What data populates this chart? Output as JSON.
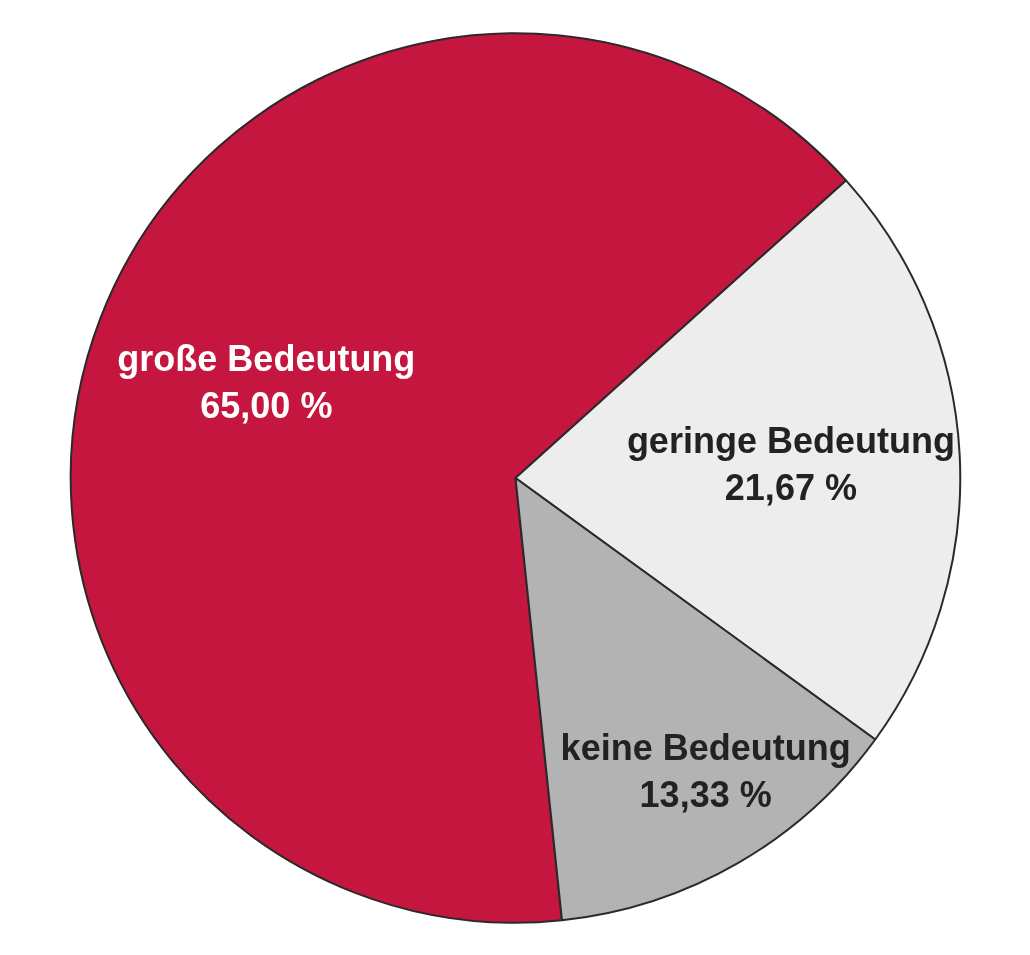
{
  "chart_data": {
    "type": "pie",
    "categories": [
      "große Bedeutung",
      "geringe Bedeutung",
      "keine Bedeutung"
    ],
    "values": [
      65.0,
      21.67,
      13.33
    ],
    "colors": [
      "#c4163f",
      "#ededed",
      "#b3b3b3"
    ],
    "value_labels": [
      "65,00 %",
      "21,67 %",
      "13,33 %"
    ]
  }
}
